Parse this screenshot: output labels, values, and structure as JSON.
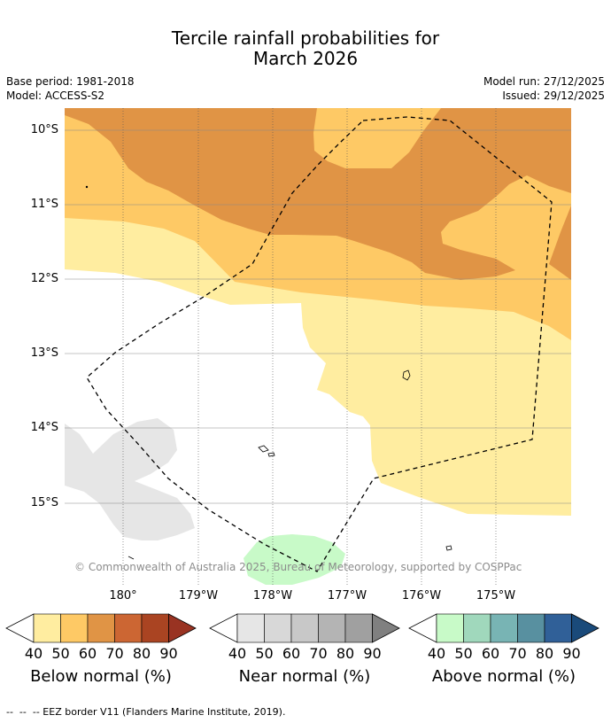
{
  "title": {
    "line1": "Tercile rainfall probabilities for",
    "line2": "March 2026"
  },
  "meta": {
    "base_period": "Base period: 1981-2018",
    "model": "Model: ACCESS-S2",
    "model_run": "Model run: 27/12/2025",
    "issued": "Issued: 29/12/2025"
  },
  "map": {
    "lat_labels": [
      "10°S",
      "11°S",
      "12°S",
      "13°S",
      "14°S",
      "15°S"
    ],
    "lon_labels": [
      "180°",
      "179°W",
      "178°W",
      "177°W",
      "176°W",
      "175°W"
    ],
    "copyright": "© Commonwealth of Australia 2025, Bureau of Meteorology, supported by COSPPac"
  },
  "colors": {
    "below": [
      "#ffeda0",
      "#fec965",
      "#e09445",
      "#cc6633",
      "#aa4422",
      "#993322"
    ],
    "near": [
      "#e6e6e6",
      "#d8d8d8",
      "#c8c8c8",
      "#b4b4b4",
      "#a0a0a0",
      "#808080"
    ],
    "above": [
      "#c8fac8",
      "#a0d8bc",
      "#78b4b4",
      "#5890a0",
      "#306098",
      "#1a4a7a"
    ]
  },
  "colorbars": [
    {
      "title": "Below normal (%)",
      "ticks": [
        "40",
        "50",
        "60",
        "70",
        "80",
        "90"
      ]
    },
    {
      "title": "Near normal (%)",
      "ticks": [
        "40",
        "50",
        "60",
        "70",
        "80",
        "90"
      ]
    },
    {
      "title": "Above normal (%)",
      "ticks": [
        "40",
        "50",
        "60",
        "70",
        "80",
        "90"
      ]
    }
  ],
  "footer": "--  --  -- EEZ border V11 (Flanders Marine Institute, 2019)."
}
